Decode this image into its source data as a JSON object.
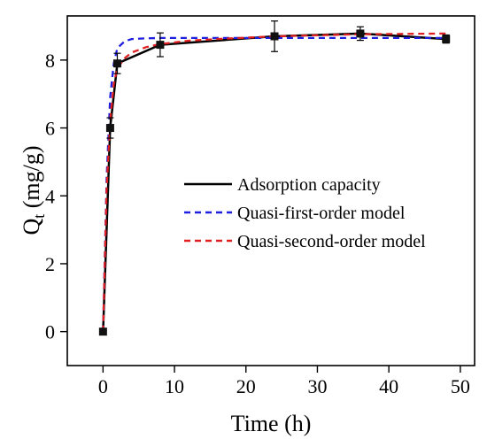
{
  "chart_data": {
    "type": "line",
    "title": "",
    "xlabel": "Time (h)",
    "ylabel_main": "Q",
    "ylabel_sub": "t",
    "ylabel_unit": "(mg/g)",
    "xlim": [
      -5,
      52
    ],
    "ylim": [
      -1,
      9.3
    ],
    "x_ticks": [
      0,
      10,
      20,
      30,
      40,
      50
    ],
    "y_ticks": [
      0,
      2,
      4,
      6,
      8
    ],
    "grid": false,
    "legend_position": "center-right",
    "measured": {
      "name": "Adsorption capacity",
      "color": "#000000",
      "x": [
        0,
        1,
        2,
        8,
        24,
        36,
        48
      ],
      "y": [
        0,
        6.0,
        7.9,
        8.45,
        8.7,
        8.78,
        8.62
      ],
      "err": [
        0,
        0.3,
        0.3,
        0.35,
        0.45,
        0.2,
        0.12
      ]
    },
    "series": [
      {
        "name": "Quasi-first-order model",
        "color": "#1f1fe0",
        "x": [
          0,
          0.5,
          1,
          1.5,
          2,
          3,
          4,
          6,
          8,
          12,
          16,
          24,
          36,
          48
        ],
        "y": [
          0,
          4.5,
          6.9,
          7.9,
          8.35,
          8.55,
          8.62,
          8.64,
          8.65,
          8.65,
          8.65,
          8.65,
          8.65,
          8.65
        ]
      },
      {
        "name": "Quasi-second-order model",
        "color": "#e02020",
        "x": [
          0,
          0.5,
          1,
          1.5,
          2,
          3,
          4,
          6,
          8,
          12,
          16,
          24,
          36,
          48
        ],
        "y": [
          0,
          4.2,
          6.2,
          7.3,
          7.75,
          8.05,
          8.22,
          8.38,
          8.47,
          8.57,
          8.62,
          8.7,
          8.76,
          8.78
        ]
      }
    ]
  }
}
